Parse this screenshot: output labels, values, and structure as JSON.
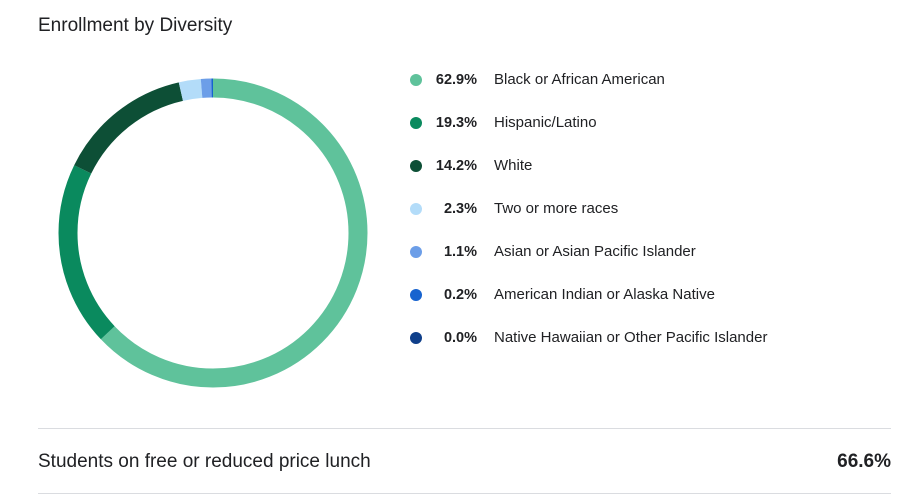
{
  "title": "Enrollment by Diversity",
  "chart_data": {
    "type": "pie",
    "title": "Enrollment by Diversity",
    "legend_position": "right",
    "categories": [
      "Black or African American",
      "Hispanic/Latino",
      "White",
      "Two or more races",
      "Asian or Asian Pacific Islander",
      "American Indian or Alaska Native",
      "Native Hawaiian or Other Pacific Islander"
    ],
    "values": [
      62.9,
      19.3,
      14.2,
      2.3,
      1.1,
      0.2,
      0.0
    ],
    "labels": [
      "62.9%",
      "19.3%",
      "14.2%",
      "2.3%",
      "1.1%",
      "0.2%",
      "0.0%"
    ],
    "colors": [
      "#5fc29b",
      "#0a8a5e",
      "#0d4f36",
      "#b3dcf9",
      "#6c9ee8",
      "#1763cf",
      "#0f3f8a"
    ]
  },
  "lunch": {
    "label": "Students on free or reduced price lunch",
    "value": "66.6%"
  }
}
